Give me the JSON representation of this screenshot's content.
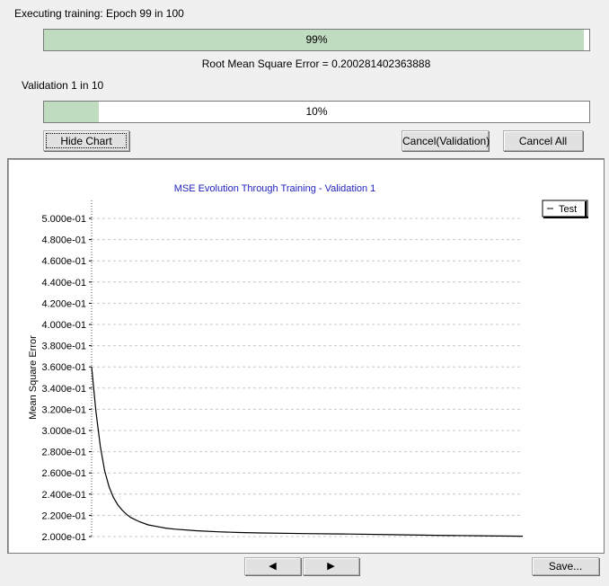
{
  "status": {
    "epoch_label": "Executing training: Epoch 99 in 100",
    "epoch_progress_text": "99%",
    "epoch_progress": 0.99,
    "rmse_label": "Root Mean Square Error = 0.200281402363888",
    "validation_label": "Validation 1 in 10",
    "validation_progress_text": "10%",
    "validation_progress": 0.1
  },
  "buttons": {
    "hide_chart": "Hide Chart",
    "cancel_validation": "Cancel(Validation)",
    "cancel_all": "Cancel All",
    "prev": "◀",
    "next": "▶",
    "save": "Save..."
  },
  "colors": {
    "progress_fill": "#c0dcc0",
    "title_color": "#1f1fbf",
    "series_color": "#000000"
  },
  "chart_data": {
    "type": "line",
    "title": "MSE Evolution Through Training - Validation 1",
    "ylabel": "Mean Square Error",
    "xlabel": "",
    "ylim": [
      0.2,
      0.5
    ],
    "yticks": [
      0.5,
      0.48,
      0.46,
      0.44,
      0.42,
      0.4,
      0.38,
      0.36,
      0.34,
      0.32,
      0.3,
      0.28,
      0.26,
      0.24,
      0.22,
      0.2
    ],
    "ytick_labels": [
      "5.000e-01",
      "4.800e-01",
      "4.600e-01",
      "4.400e-01",
      "4.200e-01",
      "4.000e-01",
      "3.800e-01",
      "3.600e-01",
      "3.400e-01",
      "3.200e-01",
      "3.000e-01",
      "2.800e-01",
      "2.600e-01",
      "2.400e-01",
      "2.200e-01",
      "2.000e-01"
    ],
    "grid": true,
    "legend_position": "top-right",
    "x": [
      1,
      2,
      3,
      4,
      5,
      6,
      7,
      8,
      9,
      10,
      12,
      14,
      16,
      18,
      20,
      25,
      30,
      35,
      40,
      50,
      60,
      70,
      80,
      90,
      100
    ],
    "series": [
      {
        "name": "Test",
        "values": [
          0.36,
          0.318,
          0.285,
          0.262,
          0.247,
          0.237,
          0.23,
          0.225,
          0.221,
          0.218,
          0.214,
          0.211,
          0.2095,
          0.208,
          0.207,
          0.2055,
          0.2045,
          0.2038,
          0.2034,
          0.2028,
          0.2024,
          0.2018,
          0.2012,
          0.2008,
          0.2003
        ]
      }
    ]
  }
}
